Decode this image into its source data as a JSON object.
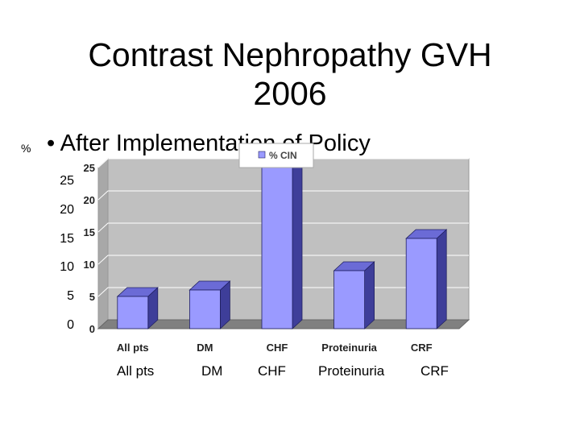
{
  "slide": {
    "title_line1": "Contrast Nephropathy   GVH",
    "title_line2": "2006",
    "bullet": "After Implementation of Policy",
    "percent_label": "%"
  },
  "outer_axis": {
    "y_ticks": [
      "25",
      "20",
      "15",
      "10",
      "5",
      "0"
    ],
    "x_labels": [
      "All pts",
      "DM",
      "CHF",
      "Proteinuria",
      "CRF"
    ]
  },
  "chart_data": {
    "type": "bar",
    "title": "",
    "xlabel": "",
    "ylabel": "",
    "categories": [
      "All pts",
      "DM",
      "CHF",
      "Proteinuria",
      "CRF"
    ],
    "series": [
      {
        "name": "% CIN",
        "values": [
          5,
          6,
          25,
          9,
          14
        ]
      }
    ],
    "ylim": [
      0,
      25
    ],
    "yticks": [
      "0",
      "5",
      "10",
      "15",
      "20",
      "25"
    ],
    "grid": true,
    "legend": "top-center",
    "colors": {
      "bar_front": "#9a9aff",
      "bar_side": "#3e3e99",
      "bar_top": "#6b6bd6",
      "wall": "#c0c0c0",
      "floor": "#808080"
    }
  }
}
